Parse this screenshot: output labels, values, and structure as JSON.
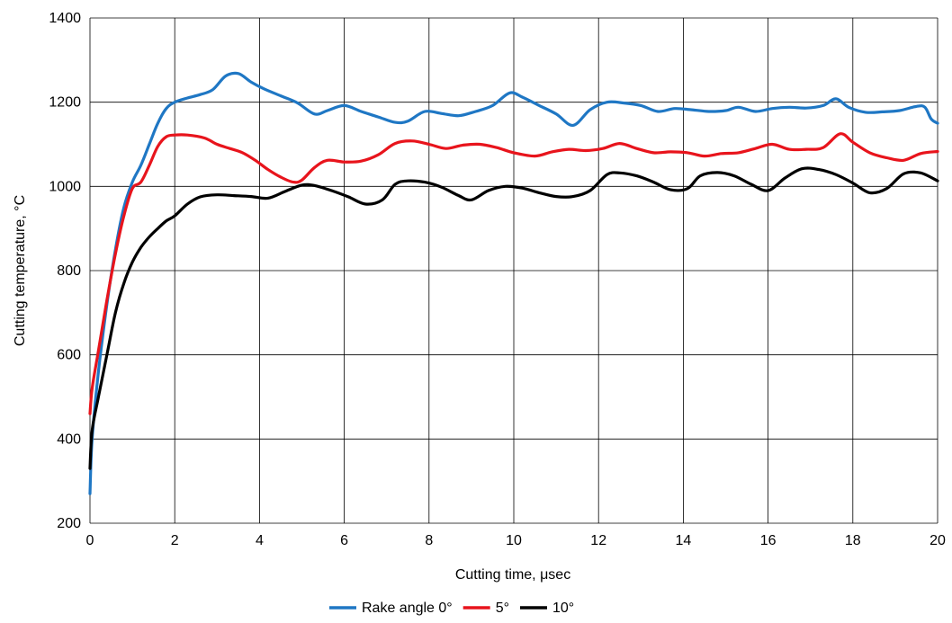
{
  "chart_data": {
    "type": "line",
    "title": "",
    "xlabel": "Cutting time, μsec",
    "ylabel": "Cutting temperature, °C",
    "xlim": [
      0,
      20
    ],
    "ylim": [
      200,
      1400
    ],
    "xticks": [
      0,
      2,
      4,
      6,
      8,
      10,
      12,
      14,
      16,
      18,
      20
    ],
    "yticks": [
      200,
      400,
      600,
      800,
      1000,
      1200,
      1400
    ],
    "grid": true,
    "legend_position": "bottom",
    "series": [
      {
        "name": "Rake angle 0°",
        "color": "#1f77c4",
        "points": [
          [
            0,
            270
          ],
          [
            0.05,
            400
          ],
          [
            0.2,
            560
          ],
          [
            0.4,
            720
          ],
          [
            0.6,
            850
          ],
          [
            0.8,
            950
          ],
          [
            1.0,
            1010
          ],
          [
            1.2,
            1050
          ],
          [
            1.4,
            1100
          ],
          [
            1.6,
            1150
          ],
          [
            1.8,
            1185
          ],
          [
            2.0,
            1200
          ],
          [
            2.3,
            1210
          ],
          [
            2.6,
            1218
          ],
          [
            2.9,
            1230
          ],
          [
            3.2,
            1262
          ],
          [
            3.5,
            1268
          ],
          [
            3.8,
            1248
          ],
          [
            4.1,
            1232
          ],
          [
            4.5,
            1215
          ],
          [
            4.9,
            1198
          ],
          [
            5.3,
            1172
          ],
          [
            5.6,
            1180
          ],
          [
            6.0,
            1192
          ],
          [
            6.4,
            1178
          ],
          [
            6.8,
            1165
          ],
          [
            7.2,
            1152
          ],
          [
            7.5,
            1155
          ],
          [
            7.9,
            1178
          ],
          [
            8.3,
            1173
          ],
          [
            8.7,
            1168
          ],
          [
            9.1,
            1178
          ],
          [
            9.5,
            1192
          ],
          [
            9.9,
            1222
          ],
          [
            10.2,
            1212
          ],
          [
            10.6,
            1192
          ],
          [
            11.0,
            1172
          ],
          [
            11.4,
            1145
          ],
          [
            11.8,
            1182
          ],
          [
            12.2,
            1200
          ],
          [
            12.6,
            1198
          ],
          [
            13.0,
            1192
          ],
          [
            13.4,
            1178
          ],
          [
            13.8,
            1185
          ],
          [
            14.2,
            1182
          ],
          [
            14.6,
            1178
          ],
          [
            15.0,
            1180
          ],
          [
            15.3,
            1188
          ],
          [
            15.7,
            1178
          ],
          [
            16.1,
            1185
          ],
          [
            16.5,
            1188
          ],
          [
            16.9,
            1186
          ],
          [
            17.3,
            1192
          ],
          [
            17.6,
            1208
          ],
          [
            17.9,
            1188
          ],
          [
            18.3,
            1176
          ],
          [
            18.7,
            1177
          ],
          [
            19.1,
            1180
          ],
          [
            19.5,
            1190
          ],
          [
            19.7,
            1188
          ],
          [
            19.85,
            1160
          ],
          [
            20,
            1150
          ]
        ]
      },
      {
        "name": "5°",
        "color": "#e8141c",
        "points": [
          [
            0,
            460
          ],
          [
            0.05,
            520
          ],
          [
            0.2,
            610
          ],
          [
            0.4,
            730
          ],
          [
            0.6,
            840
          ],
          [
            0.8,
            930
          ],
          [
            1.0,
            995
          ],
          [
            1.2,
            1010
          ],
          [
            1.4,
            1050
          ],
          [
            1.6,
            1095
          ],
          [
            1.8,
            1118
          ],
          [
            2.0,
            1122
          ],
          [
            2.3,
            1122
          ],
          [
            2.7,
            1115
          ],
          [
            3.0,
            1100
          ],
          [
            3.3,
            1090
          ],
          [
            3.6,
            1080
          ],
          [
            3.9,
            1062
          ],
          [
            4.2,
            1040
          ],
          [
            4.5,
            1022
          ],
          [
            4.8,
            1010
          ],
          [
            5.0,
            1015
          ],
          [
            5.3,
            1045
          ],
          [
            5.6,
            1062
          ],
          [
            6.0,
            1058
          ],
          [
            6.4,
            1060
          ],
          [
            6.8,
            1075
          ],
          [
            7.2,
            1102
          ],
          [
            7.6,
            1108
          ],
          [
            8.0,
            1100
          ],
          [
            8.4,
            1090
          ],
          [
            8.8,
            1098
          ],
          [
            9.2,
            1100
          ],
          [
            9.6,
            1092
          ],
          [
            10.0,
            1080
          ],
          [
            10.5,
            1072
          ],
          [
            10.9,
            1082
          ],
          [
            11.3,
            1088
          ],
          [
            11.7,
            1085
          ],
          [
            12.1,
            1090
          ],
          [
            12.5,
            1102
          ],
          [
            12.9,
            1090
          ],
          [
            13.3,
            1080
          ],
          [
            13.7,
            1082
          ],
          [
            14.1,
            1080
          ],
          [
            14.5,
            1072
          ],
          [
            14.9,
            1078
          ],
          [
            15.3,
            1080
          ],
          [
            15.7,
            1090
          ],
          [
            16.1,
            1100
          ],
          [
            16.5,
            1088
          ],
          [
            16.9,
            1088
          ],
          [
            17.3,
            1092
          ],
          [
            17.7,
            1125
          ],
          [
            18.0,
            1105
          ],
          [
            18.4,
            1080
          ],
          [
            18.8,
            1068
          ],
          [
            19.2,
            1062
          ],
          [
            19.6,
            1078
          ],
          [
            20,
            1083
          ]
        ]
      },
      {
        "name": "10°",
        "color": "#000000",
        "points": [
          [
            0,
            330
          ],
          [
            0.05,
            420
          ],
          [
            0.2,
            500
          ],
          [
            0.4,
            600
          ],
          [
            0.6,
            700
          ],
          [
            0.8,
            770
          ],
          [
            1.0,
            820
          ],
          [
            1.2,
            855
          ],
          [
            1.4,
            880
          ],
          [
            1.6,
            900
          ],
          [
            1.8,
            918
          ],
          [
            2.0,
            930
          ],
          [
            2.3,
            958
          ],
          [
            2.6,
            975
          ],
          [
            3.0,
            980
          ],
          [
            3.4,
            978
          ],
          [
            3.8,
            976
          ],
          [
            4.2,
            972
          ],
          [
            4.6,
            988
          ],
          [
            5.0,
            1003
          ],
          [
            5.3,
            1002
          ],
          [
            5.7,
            990
          ],
          [
            6.1,
            975
          ],
          [
            6.5,
            958
          ],
          [
            6.9,
            968
          ],
          [
            7.2,
            1005
          ],
          [
            7.5,
            1013
          ],
          [
            7.9,
            1010
          ],
          [
            8.3,
            998
          ],
          [
            8.7,
            978
          ],
          [
            9.0,
            968
          ],
          [
            9.4,
            990
          ],
          [
            9.8,
            1000
          ],
          [
            10.2,
            996
          ],
          [
            10.6,
            985
          ],
          [
            11.0,
            976
          ],
          [
            11.4,
            976
          ],
          [
            11.8,
            990
          ],
          [
            12.2,
            1028
          ],
          [
            12.5,
            1032
          ],
          [
            12.9,
            1025
          ],
          [
            13.3,
            1010
          ],
          [
            13.7,
            992
          ],
          [
            14.1,
            995
          ],
          [
            14.4,
            1025
          ],
          [
            14.8,
            1033
          ],
          [
            15.2,
            1025
          ],
          [
            15.6,
            1005
          ],
          [
            16.0,
            990
          ],
          [
            16.4,
            1020
          ],
          [
            16.8,
            1042
          ],
          [
            17.2,
            1040
          ],
          [
            17.6,
            1028
          ],
          [
            18.0,
            1008
          ],
          [
            18.4,
            985
          ],
          [
            18.8,
            995
          ],
          [
            19.2,
            1030
          ],
          [
            19.6,
            1032
          ],
          [
            20,
            1013
          ]
        ]
      }
    ]
  }
}
